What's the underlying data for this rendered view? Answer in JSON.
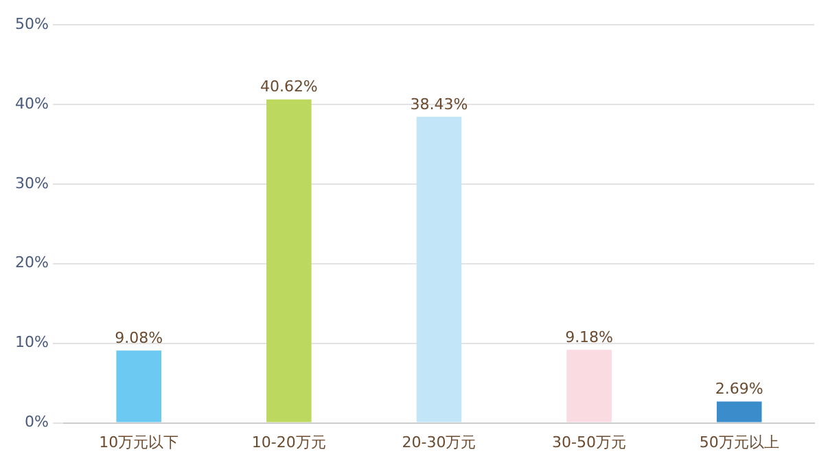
{
  "chart_data": {
    "type": "bar",
    "categories": [
      "10万元以下",
      "10-20万元",
      "20-30万元",
      "30-50万元",
      "50万元以上"
    ],
    "values": [
      9.08,
      40.62,
      38.43,
      9.18,
      2.69
    ],
    "colors": [
      "#6ccaf2",
      "#bcd85f",
      "#c2e5f7",
      "#fadbe2",
      "#3a8ccb"
    ],
    "value_labels": [
      "9.08%",
      "40.62%",
      "38.43%",
      "9.18%",
      "2.69%"
    ],
    "ylim": [
      0,
      50
    ],
    "yticks": [
      {
        "value": 0,
        "label": "0%"
      },
      {
        "value": 10,
        "label": "10%"
      },
      {
        "value": 20,
        "label": "20%"
      },
      {
        "value": 30,
        "label": "30%"
      },
      {
        "value": 40,
        "label": "40%"
      },
      {
        "value": 50,
        "label": "50%"
      }
    ],
    "grid": "y",
    "legend": false
  }
}
